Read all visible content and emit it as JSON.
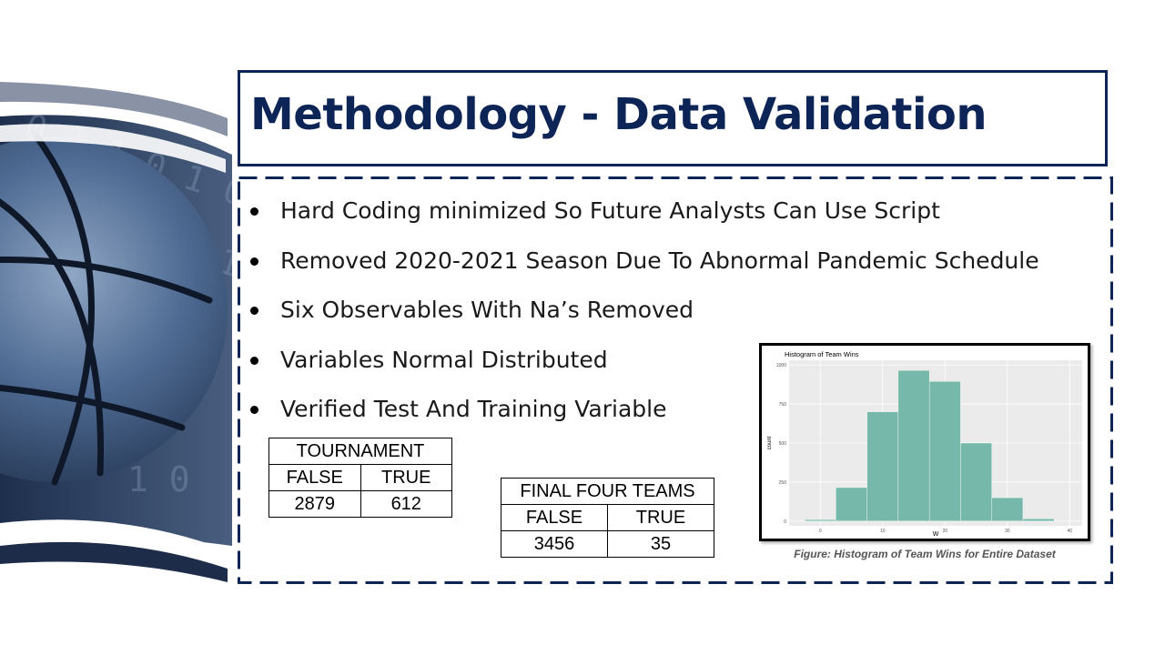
{
  "slide": {
    "title": "Methodology - Data Validation",
    "bullets": [
      "Hard Coding minimized So Future Analysts Can Use Script",
      "Removed 2020-2021 Season Due To Abnormal Pandemic Schedule",
      "Six Observables With Na’s Removed",
      "Variables Normal Distributed",
      "Verified Test And Training Variable"
    ]
  },
  "tournament_table": {
    "header": "TOURNAMENT",
    "columns": [
      "FALSE",
      "TRUE"
    ],
    "values": [
      "2879",
      "612"
    ]
  },
  "final_four_table": {
    "header": "FINAL FOUR TEAMS",
    "columns": [
      "FALSE",
      "TRUE"
    ],
    "values": [
      "3456",
      "35"
    ]
  },
  "colors": {
    "navy": "#0d2456",
    "bar_fill": "#76b8a9",
    "plot_panel": "#ebebeb"
  },
  "chart_data": {
    "type": "bar",
    "title": "Histogram of Team Wins",
    "xlabel": "W",
    "ylabel": "count",
    "caption": "Figure: Histogram of Team Wins for Entire Dataset",
    "x_ticks": [
      "0",
      "10",
      "20",
      "30",
      "40"
    ],
    "y_ticks": [
      "0",
      "250",
      "500",
      "750",
      "1000"
    ],
    "xlim": [
      -5,
      42
    ],
    "ylim": [
      -30,
      1030
    ],
    "bins": [
      {
        "start": -2.5,
        "end": 2.5,
        "count": 10
      },
      {
        "start": 2.5,
        "end": 7.5,
        "count": 215
      },
      {
        "start": 7.5,
        "end": 12.5,
        "count": 700
      },
      {
        "start": 12.5,
        "end": 17.5,
        "count": 965
      },
      {
        "start": 17.5,
        "end": 22.5,
        "count": 895
      },
      {
        "start": 22.5,
        "end": 27.5,
        "count": 500
      },
      {
        "start": 27.5,
        "end": 32.5,
        "count": 150
      },
      {
        "start": 32.5,
        "end": 37.5,
        "count": 15
      }
    ]
  }
}
